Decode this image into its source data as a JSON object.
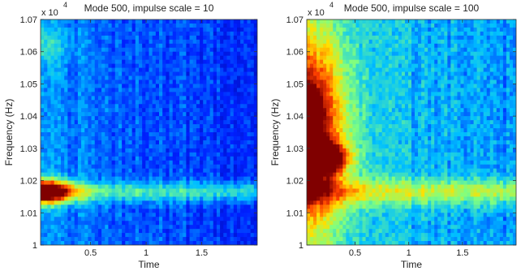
{
  "chart_data": [
    {
      "type": "heatmap",
      "title": "Mode 500, impulse scale = 10",
      "xlabel": "Time",
      "ylabel": "Frequency (Hz)",
      "y_multiplier_base": "x 10",
      "y_multiplier_exp": "4",
      "xlim": [
        0.05,
        2.0
      ],
      "ylim": [
        1.0,
        1.07
      ],
      "x_ticks": [
        {
          "value": 0.5,
          "label": "0.5"
        },
        {
          "value": 1.0,
          "label": "1"
        },
        {
          "value": 1.5,
          "label": "1.5"
        }
      ],
      "y_ticks": [
        {
          "value": 1.0,
          "label": "1"
        },
        {
          "value": 1.01,
          "label": "1.01"
        },
        {
          "value": 1.02,
          "label": "1.02"
        },
        {
          "value": 1.03,
          "label": "1.03"
        },
        {
          "value": 1.04,
          "label": "1.04"
        },
        {
          "value": 1.05,
          "label": "1.05"
        },
        {
          "value": 1.06,
          "label": "1.06"
        },
        {
          "value": 1.07,
          "label": "1.07"
        }
      ],
      "colormap": [
        "#00008f",
        "#0020ff",
        "#00c0ff",
        "#80ff80",
        "#ffe000",
        "#ff4000",
        "#800000"
      ],
      "base_level": 0.28,
      "time_decay": 0.12,
      "noise_level": 0.05,
      "features": [
        {
          "x": 0.05,
          "y": 1.0165,
          "peak": 0.92,
          "x_width": 0.28,
          "y_width": 0.0035
        },
        {
          "x": 0.05,
          "y": 1.062,
          "peak": 0.12,
          "x_width": 0.25,
          "y_width": 0.006
        }
      ],
      "band": {
        "y": 1.0165,
        "level": 0.22,
        "y_width": 0.003
      }
    },
    {
      "type": "heatmap",
      "title": "Mode 500, impulse scale = 100",
      "xlabel": "Time",
      "ylabel": "Frequency (Hz)",
      "y_multiplier_base": "x 10",
      "y_multiplier_exp": "4",
      "xlim": [
        0.05,
        2.0
      ],
      "ylim": [
        1.0,
        1.07
      ],
      "x_ticks": [
        {
          "value": 0.5,
          "label": "0.5"
        },
        {
          "value": 1.0,
          "label": "1"
        },
        {
          "value": 1.5,
          "label": "1.5"
        }
      ],
      "y_ticks": [
        {
          "value": 1.0,
          "label": "1"
        },
        {
          "value": 1.01,
          "label": "1.01"
        },
        {
          "value": 1.02,
          "label": "1.02"
        },
        {
          "value": 1.03,
          "label": "1.03"
        },
        {
          "value": 1.04,
          "label": "1.04"
        },
        {
          "value": 1.05,
          "label": "1.05"
        },
        {
          "value": 1.06,
          "label": "1.06"
        },
        {
          "value": 1.07,
          "label": "1.07"
        }
      ],
      "colormap": [
        "#00008f",
        "#0020ff",
        "#00c0ff",
        "#80ff80",
        "#ffe000",
        "#ff4000",
        "#800000"
      ],
      "base_level": 0.38,
      "time_decay": 0.1,
      "noise_level": 0.06,
      "features": [
        {
          "x": 0.05,
          "y": 1.035,
          "peak": 0.72,
          "x_width": 0.35,
          "y_width": 0.03
        },
        {
          "x": 0.08,
          "y": 1.041,
          "peak": 0.82,
          "x_width": 0.08,
          "y_width": 0.006
        },
        {
          "x": 0.2,
          "y": 1.027,
          "peak": 0.78,
          "x_width": 0.2,
          "y_width": 0.004
        }
      ],
      "band": {
        "y": 1.0165,
        "level": 0.26,
        "y_width": 0.004
      }
    }
  ]
}
